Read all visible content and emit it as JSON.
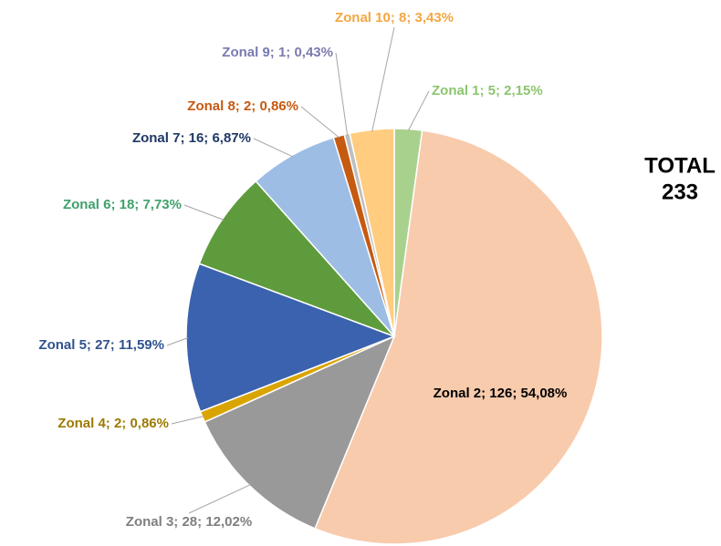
{
  "chart_data": {
    "type": "pie",
    "categories": [
      "Zonal 1",
      "Zonal 2",
      "Zonal 3",
      "Zonal 4",
      "Zonal 5",
      "Zonal 6",
      "Zonal 7",
      "Zonal 8",
      "Zonal 9",
      "Zonal 10"
    ],
    "values": [
      5,
      126,
      28,
      2,
      27,
      18,
      16,
      2,
      1,
      8
    ],
    "data_labels": [
      "Zonal 1; 5; 2,15%",
      "Zonal 2; 126; 54,08%",
      "Zonal 3; 28; 12,02%",
      "Zonal 4; 2; 0,86%",
      "Zonal 5; 27; 11,59%",
      "Zonal 6; 18; 7,73%",
      "Zonal 7; 16; 6,87%",
      "Zonal 8; 2; 0,86%",
      "Zonal 9; 1; 0,43%",
      "Zonal 10; 8; 3,43%"
    ],
    "colors": [
      "#a9d18e",
      "#f8cbad",
      "#999999",
      "#d9a400",
      "#3b62ae",
      "#5e9b3c",
      "#9dbde4",
      "#c55a11",
      "#bfbfbf",
      "#ffcc80"
    ],
    "label_colors": [
      "#8cc56e",
      "#000000",
      "#7f7f7f",
      "#9c7a00",
      "#2f528f",
      "#3fa06c",
      "#1f3864",
      "#c55a11",
      "#7a7ab0",
      "#f4a742"
    ],
    "total_label": "TOTAL",
    "total": 233
  }
}
